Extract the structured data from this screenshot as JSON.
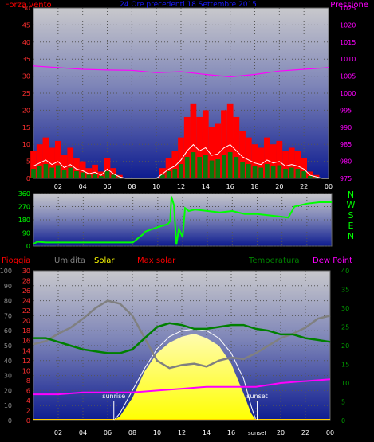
{
  "top_panel": {
    "title_left": "Forza vento",
    "title_center": "24 Ore precedenti 18 Settembre 2015",
    "title_right": "Pressione",
    "wind_ticks": [
      "0",
      "5",
      "10",
      "15",
      "20",
      "25",
      "30",
      "35",
      "40",
      "45",
      "50"
    ],
    "pressure_ticks": [
      "975",
      "980",
      "985",
      "990",
      "995",
      "1000",
      "1005",
      "1010",
      "1015",
      "1020",
      "1025"
    ]
  },
  "direction_panel": {
    "ticks": [
      "0",
      "90",
      "180",
      "270",
      "360"
    ],
    "compass": [
      "N",
      "W",
      "S",
      "E",
      "N"
    ]
  },
  "bottom_panel": {
    "labels": {
      "pioggia": "Pioggia",
      "umidita": "Umidita",
      "solar": "Solar",
      "max_solar": "Max solar",
      "temperatura": "Temperatura",
      "dew_point": "Dew Point"
    },
    "humidity_ticks": [
      "0",
      "10",
      "20",
      "30",
      "40",
      "50",
      "60",
      "70",
      "80",
      "90",
      "100"
    ],
    "rain_ticks": [
      "0",
      "2",
      "4",
      "6",
      "8",
      "10",
      "12",
      "14",
      "16",
      "18",
      "20",
      "22",
      "24",
      "26",
      "28",
      "30"
    ],
    "temp_ticks": [
      "0",
      "5",
      "10",
      "15",
      "20",
      "25",
      "30",
      "35",
      "40"
    ],
    "sunrise_label": "sunrise",
    "sunset_label": "sunset",
    "sunset_axis_label": "sunset"
  },
  "x_ticks": [
    "02",
    "04",
    "06",
    "08",
    "10",
    "12",
    "14",
    "16",
    "18",
    "20",
    "22",
    "00"
  ],
  "colors": {
    "wind": "#ff0000",
    "pressure": "#ff00ff",
    "direction": "#00ff00",
    "humidity": "#808080",
    "solar": "#ffff00",
    "max_solar": "#ff0000",
    "temperature": "#008000",
    "dew_point": "#ff00ff",
    "rain": "#ff0000"
  },
  "chart_data": [
    {
      "type": "line",
      "title": "24 Ore precedenti 18 Settembre 2015",
      "x_labels": [
        "02",
        "04",
        "06",
        "08",
        "10",
        "12",
        "14",
        "16",
        "18",
        "20",
        "22",
        "00"
      ],
      "series": [
        {
          "name": "Forza vento",
          "axis": "left",
          "ylim": [
            0,
            50
          ],
          "x": [
            0,
            0.5,
            1,
            1.5,
            2,
            2.5,
            3,
            3.5,
            4,
            4.5,
            5,
            5.5,
            6,
            6.5,
            7,
            7.5,
            8,
            8.5,
            9,
            9.5,
            10,
            10.5,
            11,
            11.5,
            12,
            12.5,
            13,
            13.5,
            14,
            14.5,
            15,
            15.5,
            16,
            16.5,
            17,
            17.5,
            18,
            18.5,
            19,
            19.5,
            20,
            20.5,
            21,
            21.5,
            22,
            22.5,
            23,
            23.5,
            24
          ],
          "values": [
            8,
            10,
            12,
            9,
            11,
            7,
            9,
            6,
            5,
            3,
            4,
            2,
            6,
            3,
            1,
            0,
            0,
            0,
            0,
            0,
            0,
            3,
            6,
            8,
            12,
            18,
            22,
            18,
            20,
            15,
            16,
            20,
            22,
            18,
            14,
            12,
            10,
            9,
            12,
            10,
            11,
            8,
            9,
            8,
            6,
            2,
            1,
            0,
            0
          ]
        },
        {
          "name": "Pressione",
          "axis": "right",
          "ylim": [
            975,
            1025
          ],
          "x": [
            0,
            2,
            4,
            6,
            8,
            10,
            12,
            14,
            16,
            18,
            20,
            22,
            24
          ],
          "values": [
            1008,
            1007.5,
            1007,
            1006.8,
            1006.7,
            1006,
            1006.3,
            1005.5,
            1004.8,
            1005.5,
            1006.5,
            1007,
            1007.5
          ]
        }
      ]
    },
    {
      "type": "line",
      "title": "",
      "x_labels": [
        "02",
        "04",
        "06",
        "08",
        "10",
        "12",
        "14",
        "16",
        "18",
        "20",
        "22",
        "00"
      ],
      "ylim": [
        0,
        360
      ],
      "y_ticks": [
        0,
        90,
        180,
        270,
        360
      ],
      "series": [
        {
          "name": "Direzione",
          "x": [
            0,
            0.3,
            1,
            3,
            5,
            7,
            8,
            8.8,
            9,
            10,
            10.8,
            11,
            11.1,
            11.3,
            11.5,
            11.7,
            12,
            12.2,
            12.5,
            13,
            14,
            15,
            16,
            17,
            18,
            19,
            20,
            20.5,
            21,
            22,
            23,
            24
          ],
          "values": [
            15,
            30,
            25,
            25,
            25,
            25,
            25,
            80,
            100,
            130,
            150,
            170,
            340,
            280,
            10,
            120,
            60,
            260,
            240,
            250,
            240,
            230,
            240,
            220,
            220,
            210,
            200,
            195,
            270,
            290,
            300,
            300
          ]
        }
      ]
    },
    {
      "type": "line",
      "title": "",
      "x_labels": [
        "02",
        "04",
        "06",
        "08",
        "10",
        "12",
        "14",
        "16",
        "18",
        "20",
        "22",
        "00"
      ],
      "series": [
        {
          "name": "Umidita",
          "axis": "left",
          "ylim": [
            0,
            100
          ],
          "x": [
            0,
            1,
            2,
            3,
            4,
            5,
            6,
            7,
            8,
            9,
            10,
            11,
            12,
            13,
            14,
            15,
            16,
            17,
            18,
            19,
            20,
            21,
            22,
            23,
            24
          ],
          "values": [
            51,
            53,
            58,
            62,
            68,
            75,
            80,
            78,
            70,
            55,
            40,
            35,
            37,
            38,
            36,
            40,
            42,
            41,
            45,
            50,
            55,
            58,
            62,
            68,
            70
          ]
        },
        {
          "name": "Solar",
          "axis": "left",
          "ylim": [
            0,
            100
          ],
          "x": [
            6.5,
            7,
            8,
            9,
            10,
            11,
            12,
            13,
            14,
            15,
            16,
            17,
            17.6,
            18
          ],
          "values": [
            0,
            3,
            15,
            33,
            45,
            52,
            56,
            58,
            55,
            50,
            38,
            18,
            5,
            0
          ]
        },
        {
          "name": "Max solar",
          "axis": "left",
          "ylim": [
            0,
            100
          ],
          "x": [
            6.5,
            7,
            8,
            9,
            10,
            11,
            12,
            13,
            14,
            15,
            16,
            17,
            17.6,
            18
          ],
          "values": [
            0,
            5,
            20,
            35,
            48,
            56,
            60,
            61,
            60,
            55,
            45,
            28,
            10,
            0
          ]
        },
        {
          "name": "Temperatura",
          "axis": "right",
          "ylim": [
            0,
            40
          ],
          "x": [
            0,
            1,
            2,
            3,
            4,
            5,
            6,
            7,
            8,
            9,
            10,
            11,
            12,
            13,
            14,
            15,
            16,
            17,
            18,
            19,
            20,
            21,
            22,
            23,
            24
          ],
          "values": [
            22,
            22,
            21,
            20,
            19,
            18.5,
            18,
            18,
            19,
            22,
            25,
            26,
            25.5,
            24.5,
            24.5,
            25,
            25.5,
            25.5,
            24.5,
            24,
            23,
            23,
            22,
            21.5,
            21
          ]
        },
        {
          "name": "Dew Point",
          "axis": "right",
          "ylim": [
            0,
            40
          ],
          "x": [
            0,
            2,
            4,
            6,
            8,
            10,
            12,
            14,
            16,
            18,
            20,
            22,
            24
          ],
          "values": [
            7,
            7,
            7.5,
            7.5,
            7.5,
            8,
            8.5,
            9,
            9,
            9,
            10,
            10.5,
            11
          ]
        }
      ]
    }
  ]
}
